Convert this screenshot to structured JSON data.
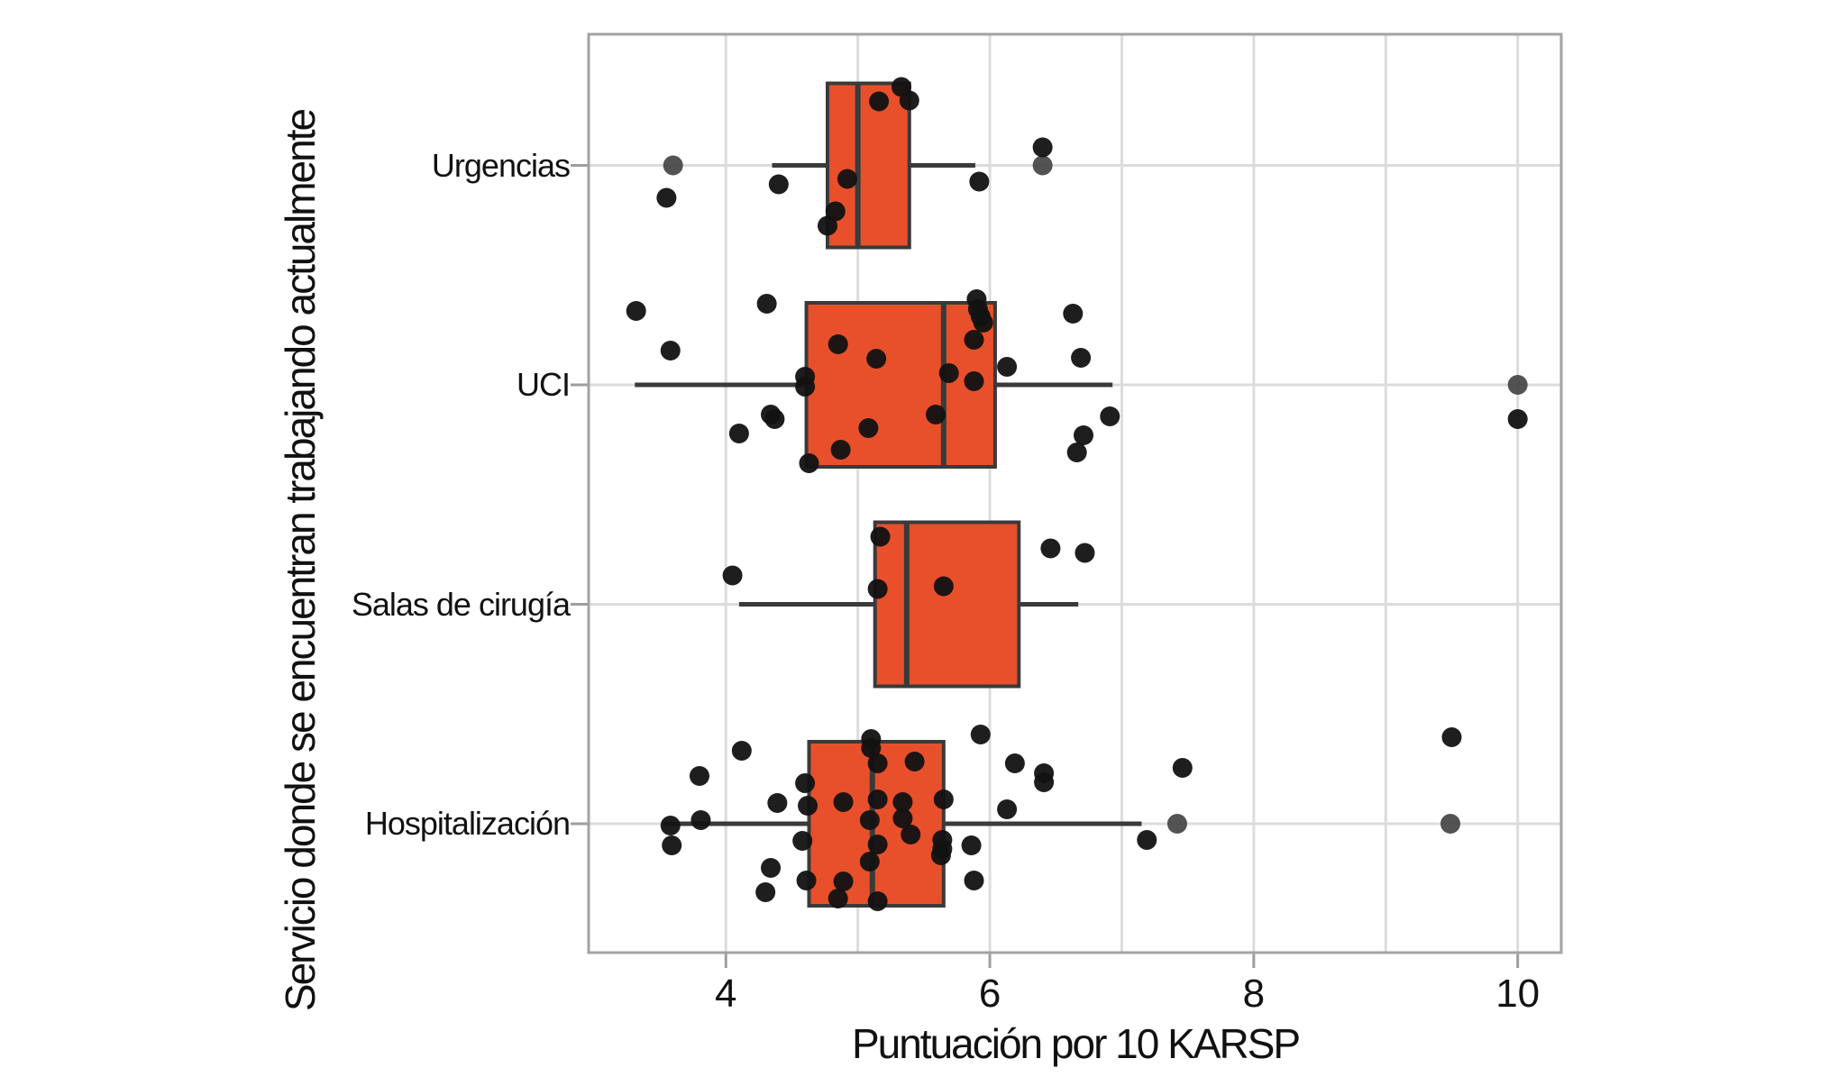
{
  "chart_data": {
    "type": "boxplot",
    "orientation": "horizontal",
    "title": "",
    "xlabel": "Puntuación por 10 KARSP",
    "ylabel": "Servicio donde se encuentran trabajando actualmente",
    "x_ticks": [
      "4",
      "6",
      "8",
      "10"
    ],
    "x_tick_values": [
      4,
      6,
      8,
      10
    ],
    "x_gridlines": [
      4,
      5,
      6,
      7,
      8,
      9,
      10
    ],
    "xlim": [
      2.96,
      10.33
    ],
    "grid": true,
    "legend": "none",
    "colors": {
      "box_fill": "#E8502B",
      "box_stroke": "#3A3A3A",
      "whisker": "#3A3A3A",
      "jitter_point": "#121212",
      "outlier_point": "#404040",
      "gridline": "#DCDCDC",
      "panel_border": "#A3A3A3",
      "tick_mark": "#9E9E9E",
      "text": "#111111"
    },
    "categories": [
      {
        "label": "Urgencias",
        "box": {
          "whisker_low": 4.35,
          "q1": 4.77,
          "median": 5.0,
          "q3": 5.39,
          "whisker_high": 5.89
        },
        "outliers": [
          3.6,
          6.4
        ],
        "points": [
          [
            3.55,
            36
          ],
          [
            4.4,
            21
          ],
          [
            4.92,
            15
          ],
          [
            4.83,
            51
          ],
          [
            4.77,
            67
          ],
          [
            5.16,
            -71
          ],
          [
            5.33,
            -87
          ],
          [
            5.39,
            -72
          ],
          [
            5.92,
            18
          ],
          [
            6.4,
            -20
          ]
        ]
      },
      {
        "label": "UCI",
        "box": {
          "whisker_low": 3.31,
          "q1": 4.61,
          "median": 5.65,
          "q3": 6.04,
          "whisker_high": 6.93
        },
        "outliers": [
          10.0
        ],
        "points": [
          [
            3.32,
            -82
          ],
          [
            3.58,
            -38
          ],
          [
            4.31,
            -90
          ],
          [
            4.1,
            54
          ],
          [
            4.34,
            33
          ],
          [
            4.37,
            38
          ],
          [
            4.6,
            -9
          ],
          [
            4.6,
            2
          ],
          [
            4.63,
            87
          ],
          [
            4.85,
            -45
          ],
          [
            4.87,
            72
          ],
          [
            5.08,
            48
          ],
          [
            5.14,
            -29
          ],
          [
            5.59,
            33
          ],
          [
            5.69,
            -13
          ],
          [
            5.88,
            -50
          ],
          [
            5.88,
            -4
          ],
          [
            5.9,
            -95
          ],
          [
            5.91,
            -84
          ],
          [
            5.93,
            -76
          ],
          [
            5.95,
            -69
          ],
          [
            6.13,
            -20
          ],
          [
            6.63,
            -79
          ],
          [
            6.69,
            -30
          ],
          [
            6.66,
            75
          ],
          [
            6.71,
            56
          ],
          [
            6.91,
            35
          ],
          [
            10.0,
            38
          ]
        ]
      },
      {
        "label": "Salas de cirugía",
        "box": {
          "whisker_low": 4.1,
          "q1": 5.13,
          "median": 5.37,
          "q3": 6.22,
          "whisker_high": 6.67
        },
        "outliers": [],
        "points": [
          [
            4.05,
            -32
          ],
          [
            5.17,
            -75
          ],
          [
            5.15,
            -17
          ],
          [
            5.65,
            -20
          ],
          [
            6.46,
            -62
          ],
          [
            6.72,
            -57
          ]
        ]
      },
      {
        "label": "Hospitalización",
        "box": {
          "whisker_low": 3.53,
          "q1": 4.63,
          "median": 5.11,
          "q3": 5.65,
          "whisker_high": 7.15
        },
        "outliers": [
          7.42,
          9.49
        ],
        "points": [
          [
            3.58,
            2
          ],
          [
            3.59,
            24
          ],
          [
            3.81,
            -4
          ],
          [
            3.8,
            -53
          ],
          [
            4.12,
            -81
          ],
          [
            4.39,
            -23
          ],
          [
            4.34,
            49
          ],
          [
            4.3,
            76
          ],
          [
            4.6,
            -45
          ],
          [
            4.62,
            -20
          ],
          [
            4.58,
            19
          ],
          [
            4.61,
            63
          ],
          [
            4.89,
            -24
          ],
          [
            4.89,
            64
          ],
          [
            4.85,
            83
          ],
          [
            5.1,
            -94
          ],
          [
            5.1,
            -84
          ],
          [
            5.15,
            -67
          ],
          [
            5.15,
            -27
          ],
          [
            5.09,
            -4
          ],
          [
            5.15,
            23
          ],
          [
            5.09,
            42
          ],
          [
            5.15,
            86
          ],
          [
            5.43,
            -69
          ],
          [
            5.34,
            -24
          ],
          [
            5.34,
            -6
          ],
          [
            5.4,
            12
          ],
          [
            5.65,
            -27
          ],
          [
            5.64,
            18
          ],
          [
            5.64,
            28
          ],
          [
            5.63,
            35
          ],
          [
            5.86,
            24
          ],
          [
            5.88,
            63
          ],
          [
            5.93,
            -99
          ],
          [
            6.13,
            -16
          ],
          [
            6.19,
            -67
          ],
          [
            6.41,
            -56
          ],
          [
            6.41,
            -46
          ],
          [
            7.19,
            18
          ],
          [
            7.46,
            -62
          ],
          [
            9.5,
            -96
          ]
        ]
      }
    ]
  }
}
